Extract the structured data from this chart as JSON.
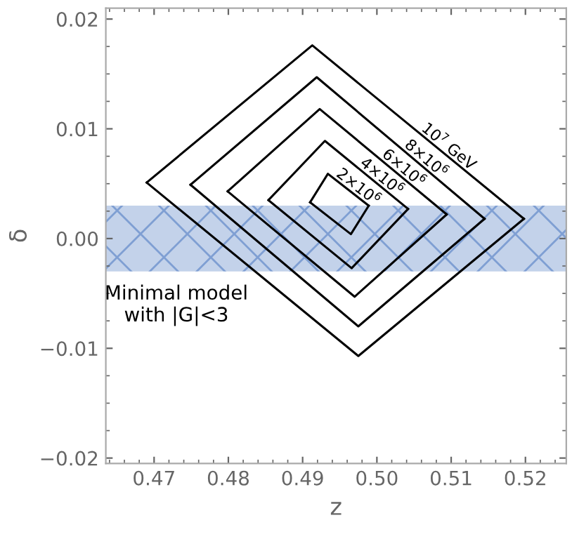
{
  "chart_data": {
    "type": "line",
    "xlabel": "z",
    "ylabel": "δ",
    "xlim": [
      0.4635,
      0.5255
    ],
    "ylim": [
      -0.0205,
      0.021
    ],
    "xticks": [
      {
        "value": 0.47,
        "label": "0.47"
      },
      {
        "value": 0.48,
        "label": "0.48"
      },
      {
        "value": 0.49,
        "label": "0.49"
      },
      {
        "value": 0.5,
        "label": "0.50"
      },
      {
        "value": 0.51,
        "label": "0.51"
      },
      {
        "value": 0.52,
        "label": "0.52"
      }
    ],
    "yticks": [
      {
        "value": -0.02,
        "label": "−0.02"
      },
      {
        "value": -0.01,
        "label": "−0.01"
      },
      {
        "value": 0,
        "label": "0.00"
      },
      {
        "value": 0.01,
        "label": "0.01"
      },
      {
        "value": 0.02,
        "label": "0.02"
      }
    ],
    "grid": false,
    "legend": false,
    "marker": "none",
    "line_style": "solid",
    "bands": [
      {
        "axis": "y",
        "from": -0.003,
        "to": 0.003,
        "label": "Minimal model\nwith |G|<3",
        "color": "#c3d2ea"
      }
    ],
    "series": [
      {
        "name": "10$^{7}$ GeV",
        "color": "#000000",
        "x": [
          0.469,
          0.4913,
          0.5198
        ],
        "values": [
          0.0051,
          0.0176,
          0.0018
        ]
      },
      {
        "color": "#000000",
        "x": [
          0.469,
          0.4975,
          0.5198
        ],
        "values": [
          0.0051,
          -0.0107,
          0.0018
        ]
      },
      {
        "name": "8×10$^{6}$",
        "color": "#000000",
        "x": [
          0.4749,
          0.4919,
          0.5145
        ],
        "values": [
          0.0049,
          0.0147,
          0.0018
        ]
      },
      {
        "color": "#000000",
        "x": [
          0.4749,
          0.4975,
          0.5145
        ],
        "values": [
          0.0049,
          -0.008,
          0.0018
        ]
      },
      {
        "name": "6×10$^{6}$",
        "color": "#000000",
        "x": [
          0.4799,
          0.4923,
          0.5094
        ],
        "values": [
          0.0043,
          0.0118,
          0.0022
        ]
      },
      {
        "color": "#000000",
        "x": [
          0.4799,
          0.497,
          0.5094
        ],
        "values": [
          0.0043,
          -0.0053,
          0.0022
        ]
      },
      {
        "name": "4×10$^{6}$",
        "color": "#000000",
        "x": [
          0.4854,
          0.493,
          0.5042
        ],
        "values": [
          0.0035,
          0.0089,
          0.0027
        ]
      },
      {
        "color": "#000000",
        "x": [
          0.4854,
          0.4966,
          0.5042
        ],
        "values": [
          0.0035,
          -0.0027,
          0.0027
        ]
      },
      {
        "name": "2×10$^{6}$",
        "color": "#000000",
        "x": [
          0.491,
          0.4934,
          0.4989
        ],
        "values": [
          0.0033,
          0.0059,
          0.003
        ]
      },
      {
        "color": "#000000",
        "x": [
          0.491,
          0.4965,
          0.4989
        ],
        "values": [
          0.0033,
          0.0004,
          0.003
        ]
      }
    ]
  }
}
